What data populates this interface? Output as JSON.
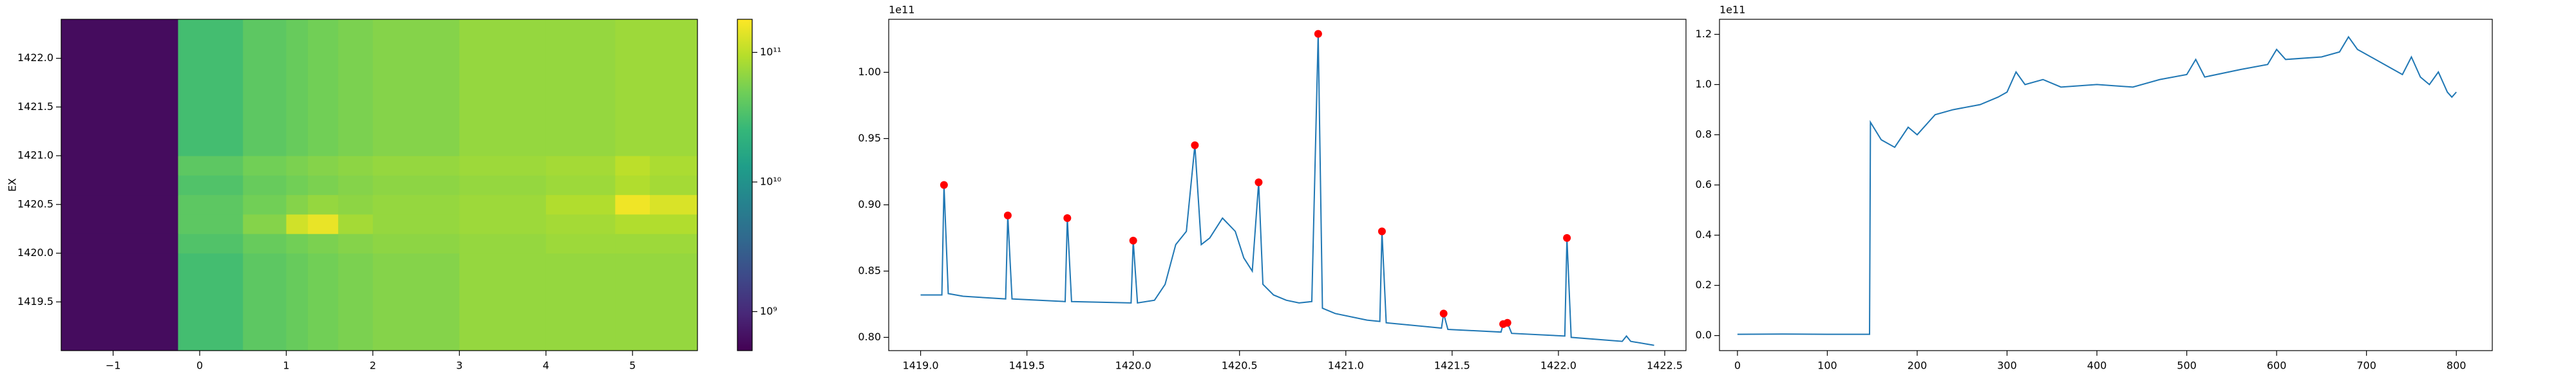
{
  "chart_data": [
    {
      "type": "heatmap",
      "ylabel": "EX",
      "xbins": [
        -1.6,
        -0.25,
        0.5,
        1.0,
        1.25,
        1.6,
        2.0,
        3.0,
        4.0,
        4.8,
        5.2,
        5.75
      ],
      "ybins": [
        1419.0,
        1420.0,
        1420.2,
        1420.4,
        1420.6,
        1420.8,
        1421.0,
        1422.4
      ],
      "z": [
        [
          600000000.0,
          30000000000.0,
          40000000000.0,
          45000000000.0,
          50000000000.0,
          55000000000.0,
          60000000000.0,
          70000000000.0,
          70000000000.0,
          70000000000.0,
          70000000000.0
        ],
        [
          600000000.0,
          35000000000.0,
          45000000000.0,
          50000000000.0,
          55000000000.0,
          60000000000.0,
          65000000000.0,
          70000000000.0,
          75000000000.0,
          75000000000.0,
          75000000000.0
        ],
        [
          600000000.0,
          40000000000.0,
          60000000000.0,
          120000000000.0,
          150000000000.0,
          80000000000.0,
          70000000000.0,
          75000000000.0,
          80000000000.0,
          90000000000.0,
          90000000000.0
        ],
        [
          600000000.0,
          40000000000.0,
          50000000000.0,
          60000000000.0,
          70000000000.0,
          65000000000.0,
          70000000000.0,
          75000000000.0,
          90000000000.0,
          160000000000.0,
          130000000000.0
        ],
        [
          600000000.0,
          35000000000.0,
          45000000000.0,
          50000000000.0,
          55000000000.0,
          60000000000.0,
          65000000000.0,
          70000000000.0,
          75000000000.0,
          90000000000.0,
          80000000000.0
        ],
        [
          600000000.0,
          40000000000.0,
          50000000000.0,
          55000000000.0,
          60000000000.0,
          65000000000.0,
          70000000000.0,
          75000000000.0,
          80000000000.0,
          100000000000.0,
          85000000000.0
        ],
        [
          600000000.0,
          30000000000.0,
          40000000000.0,
          45000000000.0,
          50000000000.0,
          55000000000.0,
          60000000000.0,
          70000000000.0,
          70000000000.0,
          75000000000.0,
          75000000000.0
        ]
      ],
      "xlim": [
        -1.6,
        5.75
      ],
      "xticks": [
        {
          "value": -1,
          "label": "−1"
        },
        0,
        1,
        2,
        3,
        4,
        5
      ],
      "ylim": [
        1419.0,
        1422.4
      ],
      "yticks": [
        1419.5,
        {
          "value": 1420,
          "label": "1420.0"
        },
        1420.5,
        {
          "value": 1421,
          "label": "1421.0"
        },
        1421.5,
        {
          "value": 1422,
          "label": "1422.0"
        }
      ],
      "colorbar": {
        "scale": "log",
        "colormap": "viridis",
        "lim": [
          500000000.0,
          180000000000.0
        ],
        "ticks": [
          {
            "value": 1000000000.0,
            "label": "10⁹"
          },
          {
            "value": 10000000000.0,
            "label": "10¹⁰"
          },
          {
            "value": 100000000000.0,
            "label": "10¹¹"
          }
        ]
      }
    },
    {
      "type": "line",
      "offset_text": "1e11",
      "color": "#1f77b4",
      "x": [
        1419.0,
        1419.1,
        1419.11,
        1419.13,
        1419.2,
        1419.4,
        1419.41,
        1419.43,
        1419.68,
        1419.69,
        1419.71,
        1419.99,
        1420.0,
        1420.02,
        1420.1,
        1420.15,
        1420.2,
        1420.25,
        1420.29,
        1420.32,
        1420.36,
        1420.42,
        1420.48,
        1420.52,
        1420.56,
        1420.59,
        1420.61,
        1420.66,
        1420.72,
        1420.78,
        1420.84,
        1420.87,
        1420.89,
        1420.95,
        1421.1,
        1421.16,
        1421.17,
        1421.19,
        1421.45,
        1421.46,
        1421.48,
        1421.73,
        1421.74,
        1421.76,
        1421.78,
        1422.03,
        1422.04,
        1422.06,
        1422.3,
        1422.32,
        1422.34,
        1422.45
      ],
      "values": [
        0.832,
        0.832,
        0.915,
        0.833,
        0.831,
        0.829,
        0.892,
        0.829,
        0.827,
        0.89,
        0.827,
        0.826,
        0.873,
        0.826,
        0.828,
        0.84,
        0.87,
        0.88,
        0.945,
        0.87,
        0.875,
        0.89,
        0.88,
        0.86,
        0.85,
        0.917,
        0.84,
        0.832,
        0.828,
        0.826,
        0.827,
        1.029,
        0.822,
        0.818,
        0.813,
        0.812,
        0.88,
        0.811,
        0.807,
        0.818,
        0.806,
        0.804,
        0.81,
        0.811,
        0.803,
        0.801,
        0.875,
        0.8,
        0.797,
        0.801,
        0.797,
        0.794
      ],
      "markers": {
        "color": "#ff0000",
        "x": [
          1419.11,
          1419.41,
          1419.69,
          1420.0,
          1420.29,
          1420.59,
          1420.87,
          1421.17,
          1421.46,
          1421.74,
          1421.76,
          1422.04
        ],
        "values": [
          0.915,
          0.892,
          0.89,
          0.873,
          0.945,
          0.917,
          1.029,
          0.88,
          0.818,
          0.81,
          0.811,
          0.875
        ]
      },
      "xlim": [
        1418.85,
        1422.6
      ],
      "xticks": [
        {
          "value": 1419,
          "label": "1419.0"
        },
        1419.5,
        {
          "value": 1420,
          "label": "1420.0"
        },
        1420.5,
        {
          "value": 1421,
          "label": "1421.0"
        },
        1421.5,
        {
          "value": 1422,
          "label": "1422.0"
        },
        1422.5
      ],
      "ylim": [
        0.79,
        1.04
      ],
      "yticks": [
        {
          "value": 0.8,
          "label": "0.80"
        },
        0.85,
        {
          "value": 0.9,
          "label": "0.90"
        },
        0.95,
        {
          "value": 1,
          "label": "1.00"
        }
      ]
    },
    {
      "type": "line",
      "offset_text": "1e11",
      "color": "#1f77b4",
      "x": [
        0,
        50,
        100,
        147,
        148,
        160,
        175,
        190,
        200,
        220,
        240,
        270,
        290,
        300,
        310,
        320,
        340,
        360,
        400,
        440,
        470,
        500,
        510,
        520,
        560,
        590,
        600,
        610,
        650,
        670,
        680,
        690,
        700,
        720,
        740,
        750,
        760,
        770,
        780,
        790,
        795,
        800
      ],
      "values": [
        0.005,
        0.006,
        0.005,
        0.005,
        0.85,
        0.78,
        0.75,
        0.83,
        0.8,
        0.88,
        0.9,
        0.92,
        0.95,
        0.97,
        1.05,
        1.0,
        1.02,
        0.99,
        1.0,
        0.99,
        1.02,
        1.04,
        1.1,
        1.03,
        1.06,
        1.08,
        1.14,
        1.1,
        1.11,
        1.13,
        1.19,
        1.14,
        1.12,
        1.08,
        1.04,
        1.11,
        1.03,
        1.0,
        1.05,
        0.97,
        0.95,
        0.97
      ],
      "xlim": [
        -20,
        840
      ],
      "xticks": [
        0,
        100,
        200,
        300,
        400,
        500,
        600,
        700,
        800
      ],
      "ylim": [
        -0.06,
        1.26
      ],
      "yticks": [
        {
          "value": 0,
          "label": "0.0"
        },
        0.2,
        0.4,
        0.6,
        0.8,
        {
          "value": 1,
          "label": "1.0"
        },
        1.2
      ]
    }
  ]
}
